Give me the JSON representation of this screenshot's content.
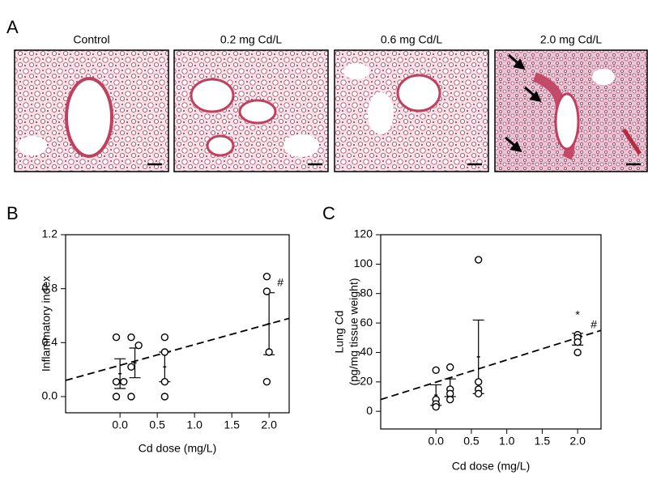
{
  "panel_labels": [
    "A",
    "B",
    "C"
  ],
  "images": {
    "titles": [
      "Control",
      "0.2 mg Cd/L",
      "0.6 mg Cd/L",
      "2.0 mg Cd/L"
    ]
  },
  "chart_data": [
    {
      "type": "scatter",
      "ylabel": [
        "Inflammatory  index"
      ],
      "xlabel": "Cd dose (mg/L)",
      "color": "#000000",
      "xlim": [
        -0.73,
        2.27
      ],
      "ylim": [
        -0.12,
        1.2
      ],
      "xticks": [
        {
          "value": 0,
          "label": "0.0"
        },
        {
          "value": 0.5,
          "label": "0.5"
        },
        {
          "value": 1,
          "label": "1.0"
        },
        {
          "value": 1.5,
          "label": "1.5"
        },
        {
          "value": 2,
          "label": "2.0"
        }
      ],
      "yticks": [
        {
          "value": 0,
          "label": "0.0"
        },
        0.4,
        0.8,
        1.2
      ],
      "points": {
        "x": [
          -0.05,
          -0.05,
          0.05,
          -0.05,
          0.15,
          0.25,
          0.15,
          0.15,
          0.6,
          0.6,
          0.6,
          0.6,
          1.97,
          1.97,
          2.0,
          1.97
        ],
        "y": [
          0.44,
          0.11,
          0.11,
          0.0,
          0.44,
          0.38,
          0.22,
          0.0,
          0.44,
          0.33,
          0.11,
          0.0,
          0.89,
          0.78,
          0.33,
          0.11
        ]
      },
      "error_bars": {
        "x": [
          0.0,
          0.2,
          0.6,
          2.0
        ],
        "mean": [
          0.17,
          0.25,
          0.22,
          0.54
        ],
        "error": [
          0.11,
          0.11,
          0.11,
          0.23
        ]
      },
      "trend_line": {
        "x": [
          -0.73,
          2.27
        ],
        "y": [
          0.12,
          0.58
        ]
      },
      "annotations": [
        "#"
      ]
    },
    {
      "type": "scatter",
      "ylabel": [
        "Lung Cd",
        "(pg/mg tissue weight)"
      ],
      "xlabel": "Cd dose (mg/L)",
      "color": "#000000",
      "xlim": [
        -0.78,
        2.33
      ],
      "ylim": [
        -12,
        120
      ],
      "xticks": [
        {
          "value": 0,
          "label": "0.0"
        },
        {
          "value": 0.5,
          "label": "0.5"
        },
        {
          "value": 1,
          "label": "1.0"
        },
        {
          "value": 1.5,
          "label": "1.5"
        },
        {
          "value": 2,
          "label": "2.0"
        }
      ],
      "yticks": [
        0,
        20,
        40,
        60,
        80,
        100,
        120
      ],
      "points": {
        "x": [
          0.0,
          0.0,
          0.0,
          0.0,
          0.2,
          0.2,
          0.2,
          0.2,
          0.6,
          0.6,
          0.6,
          0.6,
          2.0,
          2.0,
          2.0,
          2.0
        ],
        "y": [
          28,
          8,
          5,
          3,
          30,
          15,
          12,
          8,
          103,
          20,
          15,
          12,
          52,
          50,
          47,
          40
        ]
      },
      "error_bars": {
        "x": [
          0.0,
          0.2,
          0.6,
          2.0
        ],
        "mean": [
          11,
          16,
          37,
          49
        ],
        "error": [
          7,
          6,
          25,
          4
        ]
      },
      "trend_line": {
        "x": [
          -0.78,
          2.33
        ],
        "y": [
          8,
          55
        ]
      },
      "annotations": [
        "*",
        "#"
      ]
    }
  ]
}
